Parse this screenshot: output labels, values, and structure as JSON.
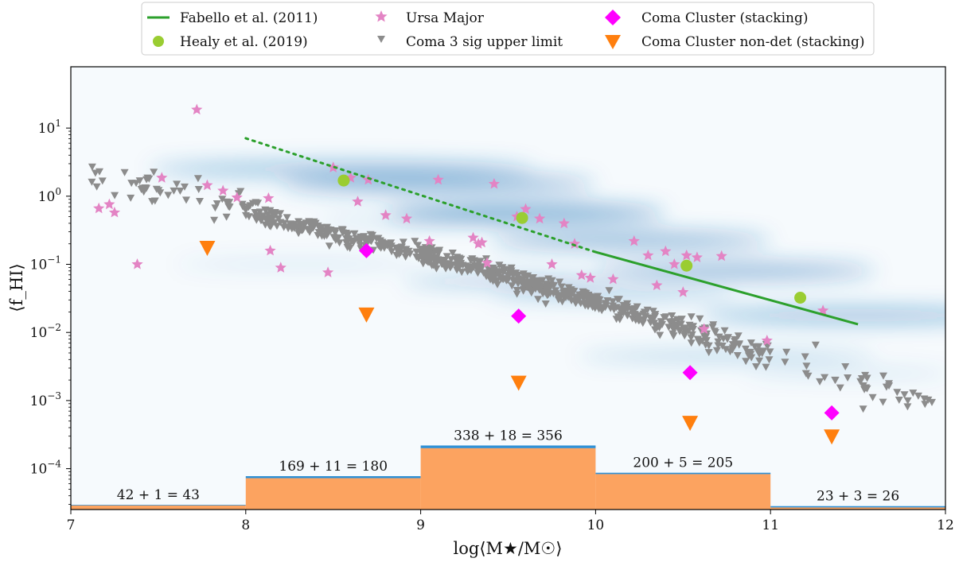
{
  "chart_data": {
    "type": "scatter",
    "xlabel": "log⟨M★/M☉⟩",
    "ylabel": "⟨f_HI⟩",
    "xlim": [
      7,
      12
    ],
    "ylim_log10": [
      -4.6,
      1.9
    ],
    "yscale": "log",
    "x_ticks": [
      "7",
      "8",
      "9",
      "10",
      "11",
      "12"
    ],
    "y_ticks": [
      {
        "exp": 1,
        "base": "10",
        "sup": "1"
      },
      {
        "exp": 0,
        "base": "10",
        "sup": "0"
      },
      {
        "exp": -1,
        "base": "10",
        "sup": "−1"
      },
      {
        "exp": -2,
        "base": "10",
        "sup": "−2"
      },
      {
        "exp": -3,
        "base": "10",
        "sup": "−3"
      },
      {
        "exp": -4,
        "base": "10",
        "sup": "−4"
      }
    ],
    "legend": {
      "position": "top-center",
      "entries": [
        {
          "key": "fabello",
          "label": "Fabello et al. (2011)"
        },
        {
          "key": "ursa",
          "label": "Ursa Major"
        },
        {
          "key": "coma_stack",
          "label": "Coma Cluster (stacking)"
        },
        {
          "key": "healy",
          "label": "Healy et al. (2019)"
        },
        {
          "key": "coma_upper",
          "label": "Coma 3 sig upper limit"
        },
        {
          "key": "coma_nondet",
          "label": "Coma Cluster non-det (stacking)"
        }
      ]
    },
    "colors": {
      "fabello": "#2ca02c",
      "healy": "#9acd32",
      "ursa": "#e384c4",
      "coma_upper": "#8c8c8c",
      "coma_stack": "#ff00ff",
      "coma_nondet": "#ff7f0e",
      "hist_fill": "#fca360",
      "hist_edge": "#2d8fd5",
      "density": "#1f6fb4"
    },
    "series": [
      {
        "name": "Fabello et al. (2011) extrapolated",
        "key": "fabello",
        "style": "dotted",
        "x": [
          8.0,
          10.0
        ],
        "log10_y": [
          0.85,
          -0.82
        ]
      },
      {
        "name": "Fabello et al. (2011)",
        "key": "fabello",
        "style": "solid",
        "x": [
          10.0,
          11.5
        ],
        "log10_y": [
          -0.82,
          -1.88
        ]
      },
      {
        "name": "Healy et al. (2019)",
        "key": "healy",
        "x": [
          8.56,
          9.58,
          10.52,
          11.17
        ],
        "log10_y": [
          0.23,
          -0.32,
          -1.02,
          -1.49
        ]
      },
      {
        "name": "Ursa Major",
        "key": "ursa",
        "x": [
          7.16,
          7.22,
          7.25,
          7.38,
          7.52,
          7.72,
          7.78,
          7.87,
          7.95,
          8.13,
          8.14,
          8.2,
          8.47,
          8.5,
          8.6,
          8.64,
          8.7,
          8.8,
          8.92,
          9.05,
          9.1,
          9.3,
          9.33,
          9.35,
          9.38,
          9.42,
          9.55,
          9.6,
          9.68,
          9.75,
          9.82,
          9.88,
          9.92,
          9.97,
          10.1,
          10.22,
          10.3,
          10.35,
          10.4,
          10.45,
          10.5,
          10.52,
          10.58,
          10.62,
          10.72,
          10.98,
          11.3
        ],
        "log10_y": [
          -0.18,
          -0.12,
          -0.24,
          -1.0,
          0.27,
          1.27,
          0.16,
          0.08,
          -0.02,
          -0.03,
          -0.8,
          -1.05,
          -1.12,
          0.42,
          0.27,
          -0.08,
          0.24,
          -0.28,
          -0.33,
          -0.66,
          0.24,
          -0.61,
          -0.7,
          -0.68,
          -0.98,
          0.18,
          -0.3,
          -0.19,
          -0.33,
          -1.0,
          -0.4,
          -0.7,
          -1.16,
          -1.2,
          -1.22,
          -0.66,
          -0.87,
          -1.31,
          -0.81,
          -1.0,
          -1.41,
          -0.87,
          -0.9,
          -1.95,
          -0.88,
          -2.12,
          -1.68
        ]
      },
      {
        "name": "Coma 3 sig upper limit",
        "key": "coma_upper",
        "generated": true,
        "x_range": [
          7.05,
          11.95
        ],
        "note": "~750 upper-limit points following the grey trend band"
      },
      {
        "name": "Coma Cluster (stacking)",
        "key": "coma_stack",
        "x": [
          8.69,
          9.56,
          10.54,
          11.35
        ],
        "log10_y": [
          -0.8,
          -1.76,
          -2.59,
          -3.18
        ]
      },
      {
        "name": "Coma Cluster non-det (stacking)",
        "key": "coma_nondet",
        "x": [
          7.78,
          8.69,
          9.56,
          10.54,
          11.35
        ],
        "log10_y": [
          -0.76,
          -1.74,
          -2.74,
          -3.33,
          -3.53
        ]
      }
    ],
    "histogram": {
      "bins": [
        [
          7,
          8
        ],
        [
          8,
          9
        ],
        [
          9,
          10
        ],
        [
          10,
          11
        ],
        [
          11,
          12
        ]
      ],
      "heights_log10": [
        -4.54,
        -4.14,
        -3.7,
        -4.08,
        -4.57
      ],
      "edge_extra_log10": [
        0.01,
        0.03,
        0.04,
        0.02,
        0.02
      ],
      "labels": [
        "42 + 1 = 43",
        "169 + 11 = 180",
        "338 + 18 = 356",
        "200 + 5 = 205",
        "23 + 3 = 26"
      ]
    }
  }
}
